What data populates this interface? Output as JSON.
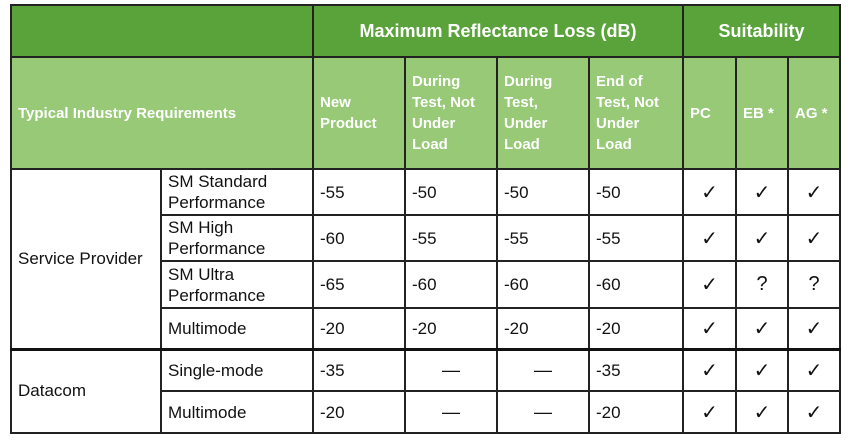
{
  "table": {
    "header_top": {
      "reflectance": "Maximum Reflectance Loss (dB)",
      "suitability": "Suitability"
    },
    "header_second": {
      "requirements": "Typical Industry Requirements",
      "new_product": "New Product",
      "during_not_under_load": "During Test, Not Under Load",
      "during_under_load": "During Test, Under Load",
      "end_of_test": "End of Test, Not Under Load",
      "pc": "PC",
      "eb": "EB *",
      "ag": "AG *"
    },
    "groups": [
      {
        "name": "Service Provider",
        "rows": [
          {
            "type": "SM Standard Performance",
            "new": "-55",
            "during_nl": "-50",
            "during_ul": "-50",
            "end": "-50",
            "pc": "✓",
            "eb": "✓",
            "ag": "✓"
          },
          {
            "type": "SM High Performance",
            "new": "-60",
            "during_nl": "-55",
            "during_ul": "-55",
            "end": "-55",
            "pc": "✓",
            "eb": "✓",
            "ag": "✓"
          },
          {
            "type": "SM Ultra Performance",
            "new": "-65",
            "during_nl": "-60",
            "during_ul": "-60",
            "end": "-60",
            "pc": "✓",
            "eb": "?",
            "ag": "?"
          },
          {
            "type": "Multimode",
            "new": "-20",
            "during_nl": "-20",
            "during_ul": "-20",
            "end": "-20",
            "pc": "✓",
            "eb": "✓",
            "ag": "✓"
          }
        ]
      },
      {
        "name": "Datacom",
        "rows": [
          {
            "type": "Single-mode",
            "new": "-35",
            "during_nl": "—",
            "during_ul": "—",
            "end": "-35",
            "pc": "✓",
            "eb": "✓",
            "ag": "✓"
          },
          {
            "type": "Multimode",
            "new": "-20",
            "during_nl": "—",
            "during_ul": "—",
            "end": "-20",
            "pc": "✓",
            "eb": "✓",
            "ag": "✓"
          }
        ]
      }
    ]
  }
}
